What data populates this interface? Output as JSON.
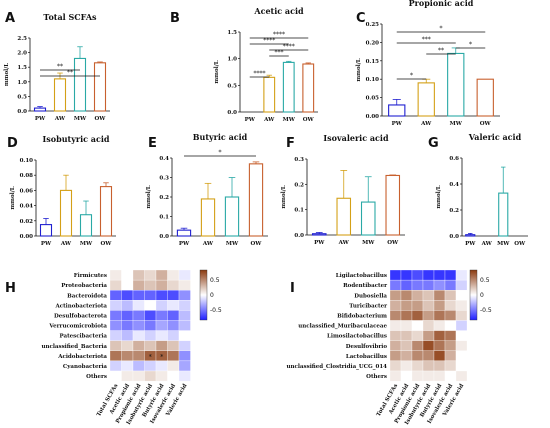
{
  "colors": {
    "PW": "#1f1fd0",
    "AW": "#d4a017",
    "MW": "#2aa9a6",
    "OW": "#c8602e",
    "heat_low": "#2020ff",
    "heat_mid": "#ffffff",
    "heat_high": "#8b3a0f"
  },
  "chart_data": [
    {
      "panel": "A",
      "type": "bar",
      "title": "Total SCFAs",
      "ylabel": "mmol/L",
      "categories": [
        "PW",
        "AW",
        "MW",
        "OW"
      ],
      "values": [
        0.1,
        1.1,
        1.8,
        1.65
      ],
      "errors": [
        0.05,
        0.2,
        0.4,
        0.03
      ],
      "ylim": [
        0,
        2.5
      ],
      "yticks": [
        "0.0",
        "0.5",
        "1.0",
        "1.5",
        "2.0",
        "2.5"
      ],
      "significance": [
        "**",
        "**"
      ]
    },
    {
      "panel": "B",
      "type": "bar",
      "title": "Acetic acid",
      "ylabel": "mmol/L",
      "categories": [
        "PW",
        "AW",
        "MW",
        "OW"
      ],
      "values": [
        0,
        0.65,
        0.93,
        0.9
      ],
      "errors": [
        0,
        0.04,
        0.02,
        0.02
      ],
      "ylim": [
        0,
        1.5
      ],
      "yticks": [
        "0.0",
        "0.5",
        "1.0",
        "1.5"
      ],
      "significance": [
        "****",
        "****",
        "****",
        "***",
        "****"
      ]
    },
    {
      "panel": "C",
      "type": "bar",
      "title": "Propionic acid",
      "ylabel": "mmol/L",
      "categories": [
        "PW",
        "AW",
        "MW",
        "OW"
      ],
      "values": [
        0.03,
        0.09,
        0.17,
        0.1
      ],
      "errors": [
        0.015,
        0.01,
        0.015,
        0.0
      ],
      "ylim": [
        0,
        0.25
      ],
      "yticks": [
        "0.00",
        "0.05",
        "0.10",
        "0.15",
        "0.20",
        "0.25"
      ],
      "significance": [
        "*",
        "***",
        "*",
        "**",
        "*"
      ]
    },
    {
      "panel": "D",
      "type": "bar",
      "title": "Isobutyric acid",
      "ylabel": "mmol/L",
      "categories": [
        "PW",
        "AW",
        "MW",
        "OW"
      ],
      "values": [
        0.015,
        0.06,
        0.028,
        0.065
      ],
      "errors": [
        0.008,
        0.02,
        0.018,
        0.005
      ],
      "ylim": [
        0,
        0.1
      ],
      "yticks": [
        "0.00",
        "0.02",
        "0.04",
        "0.06",
        "0.08",
        "0.10"
      ],
      "significance": []
    },
    {
      "panel": "E",
      "type": "bar",
      "title": "Butyric acid",
      "ylabel": "mmol/L",
      "categories": [
        "PW",
        "AW",
        "MW",
        "OW"
      ],
      "values": [
        0.03,
        0.19,
        0.2,
        0.37
      ],
      "errors": [
        0.01,
        0.08,
        0.1,
        0.01
      ],
      "ylim": [
        0,
        0.4
      ],
      "yticks": [
        "0.0",
        "0.1",
        "0.2",
        "0.3",
        "0.4"
      ],
      "significance": [
        "*"
      ]
    },
    {
      "panel": "F",
      "type": "bar",
      "title": "Isovaleric acid",
      "ylabel": "mmol/L",
      "categories": [
        "PW",
        "AW",
        "MW",
        "OW"
      ],
      "values": [
        0.005,
        0.145,
        0.13,
        0.235
      ],
      "errors": [
        0.005,
        0.11,
        0.1,
        0.002
      ],
      "ylim": [
        0,
        0.3
      ],
      "yticks": [
        "0.0",
        "0.1",
        "0.2",
        "0.3"
      ],
      "significance": []
    },
    {
      "panel": "G",
      "type": "bar",
      "title": "Valeric acid",
      "ylabel": "mmol/L",
      "categories": [
        "PW",
        "AW",
        "MW",
        "OW"
      ],
      "values": [
        0.01,
        0,
        0.33,
        0
      ],
      "errors": [
        0.01,
        0,
        0.2,
        0
      ],
      "ylim": [
        0,
        0.6
      ],
      "yticks": [
        "0.0",
        "0.2",
        "0.4",
        "0.6"
      ],
      "significance": []
    },
    {
      "panel": "H",
      "type": "heatmap",
      "rows": [
        "Firmicutes",
        "Proteobacteria",
        "Bacteroidota",
        "Actinobacteriota",
        "Desulfobacterota",
        "Verrucomicrobiota",
        "Patescibacteria",
        "unclassified_Bacteria",
        "Acidobacteriota",
        "Cyanobacteria",
        "Others"
      ],
      "columns": [
        "Total SCFAs",
        "Acetic acid",
        "Propionic acid",
        "Isobutyric acid",
        "Butyric acid",
        "Isovaleric acid",
        "Valeric acid"
      ],
      "values": [
        [
          0.1,
          0.0,
          0.3,
          0.2,
          0.4,
          0.1,
          -0.1
        ],
        [
          0.2,
          0.0,
          0.4,
          0.3,
          0.4,
          0.2,
          0.1
        ],
        [
          -0.7,
          -0.8,
          -0.7,
          -0.7,
          -0.8,
          -0.8,
          -0.5
        ],
        [
          -0.2,
          -0.3,
          -0.1,
          0.0,
          -0.2,
          -0.1,
          -0.2
        ],
        [
          -0.6,
          -0.7,
          -0.6,
          -0.8,
          -0.6,
          -0.7,
          -0.3
        ],
        [
          -0.5,
          -0.6,
          -0.5,
          -0.6,
          -0.4,
          -0.5,
          -0.3
        ],
        [
          -0.2,
          -0.3,
          -0.1,
          -0.2,
          -0.1,
          -0.2,
          0.0
        ],
        [
          0.3,
          0.2,
          0.4,
          0.3,
          0.5,
          0.3,
          -0.2
        ],
        [
          0.7,
          0.6,
          0.6,
          0.8,
          0.8,
          0.7,
          -0.5
        ],
        [
          -0.2,
          -0.1,
          -0.3,
          -0.2,
          -0.1,
          0.1,
          -0.4
        ],
        [
          0.0,
          0.1,
          0.1,
          0.2,
          0.1,
          0.0,
          -0.1
        ]
      ],
      "marks": [
        [
          "8",
          "3",
          "*"
        ],
        [
          "8",
          "4",
          "*"
        ]
      ],
      "colorbar_ticks": [
        "0.5",
        "0",
        "-0.5"
      ]
    },
    {
      "panel": "I",
      "type": "heatmap",
      "rows": [
        "Ligilactobacillus",
        "Rodentibacter",
        "Dubosiella",
        "Turicibacter",
        "Bifidobacterium",
        "unclassified_Muribaculaceae",
        "Limosilactobacillus",
        "Desulfovibrio",
        "Lactobacillus",
        "unclassified_Clostridia_UCG_014",
        "Others"
      ],
      "columns": [
        "Total SCFAs",
        "Acetic acid",
        "Propionic acid",
        "Isobutyric acid",
        "Butyric acid",
        "Isovaleric acid",
        "Valeric acid"
      ],
      "values": [
        [
          -0.9,
          -0.9,
          -0.8,
          -0.9,
          -0.9,
          -0.9,
          -0.1
        ],
        [
          -0.6,
          -0.7,
          -0.6,
          -0.6,
          -0.5,
          -0.6,
          -0.2
        ],
        [
          0.5,
          0.6,
          0.4,
          0.3,
          0.6,
          0.3,
          0.0
        ],
        [
          0.4,
          0.5,
          0.5,
          0.3,
          0.5,
          0.2,
          0.1
        ],
        [
          0.6,
          0.7,
          0.8,
          0.5,
          0.7,
          0.6,
          0.2
        ],
        [
          0.1,
          0.1,
          0.0,
          0.2,
          0.1,
          0.0,
          -0.2
        ],
        [
          0.3,
          0.3,
          0.2,
          0.5,
          0.8,
          0.7,
          0.0
        ],
        [
          0.4,
          0.3,
          0.6,
          0.9,
          0.7,
          0.5,
          0.1
        ],
        [
          0.5,
          0.4,
          0.6,
          0.6,
          0.9,
          0.4,
          0.0
        ],
        [
          0.2,
          0.1,
          0.2,
          0.3,
          0.3,
          0.2,
          0.0
        ],
        [
          0.1,
          0.0,
          0.1,
          0.1,
          0.1,
          0.0,
          0.1
        ]
      ],
      "marks": [],
      "colorbar_ticks": [
        "0.5",
        "0",
        "-0.5"
      ]
    }
  ]
}
